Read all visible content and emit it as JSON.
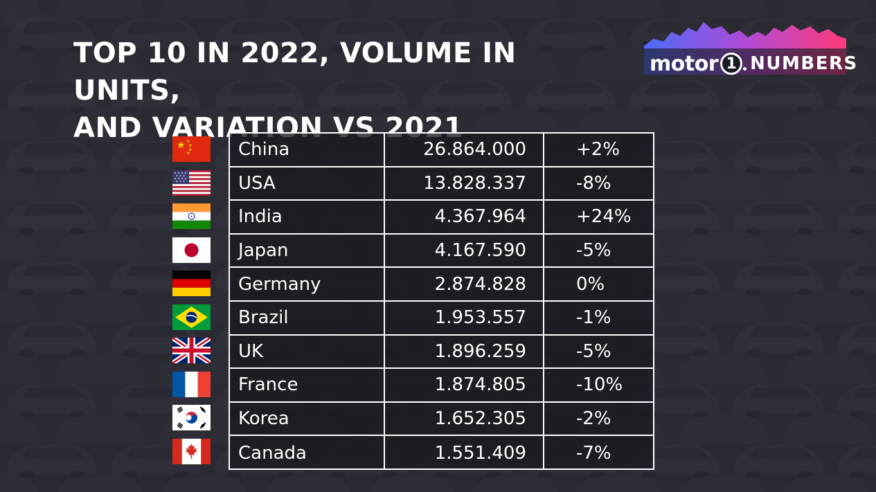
{
  "title": {
    "line1": "TOP 10 IN 2022, VOLUME IN UNITS,",
    "line2": "AND VARIATION VS 2021"
  },
  "logo": {
    "motor": "motor",
    "one": "1",
    "numbers": "NUMBERS"
  },
  "colors": {
    "background": "#2b2a33",
    "text": "#ffffff",
    "logo_gradient": [
      "#4a6cf7",
      "#b04ad8",
      "#ff3b7a"
    ]
  },
  "rows": [
    {
      "country": "China",
      "volume": "26.864.000",
      "change": "+2%",
      "flag": "china-flag-icon"
    },
    {
      "country": "USA",
      "volume": "13.828.337",
      "change": "-8%",
      "flag": "usa-flag-icon"
    },
    {
      "country": "India",
      "volume": "4.367.964",
      "change": "+24%",
      "flag": "india-flag-icon"
    },
    {
      "country": "Japan",
      "volume": "4.167.590",
      "change": "-5%",
      "flag": "japan-flag-icon"
    },
    {
      "country": "Germany",
      "volume": "2.874.828",
      "change": "0%",
      "flag": "germany-flag-icon"
    },
    {
      "country": "Brazil",
      "volume": "1.953.557",
      "change": "-1%",
      "flag": "brazil-flag-icon"
    },
    {
      "country": "UK",
      "volume": "1.896.259",
      "change": "-5%",
      "flag": "uk-flag-icon"
    },
    {
      "country": "France",
      "volume": "1.874.805",
      "change": "-10%",
      "flag": "france-flag-icon"
    },
    {
      "country": "Korea",
      "volume": "1.652.305",
      "change": "-2%",
      "flag": "korea-flag-icon"
    },
    {
      "country": "Canada",
      "volume": "1.551.409",
      "change": "-7%",
      "flag": "canada-flag-icon"
    }
  ]
}
